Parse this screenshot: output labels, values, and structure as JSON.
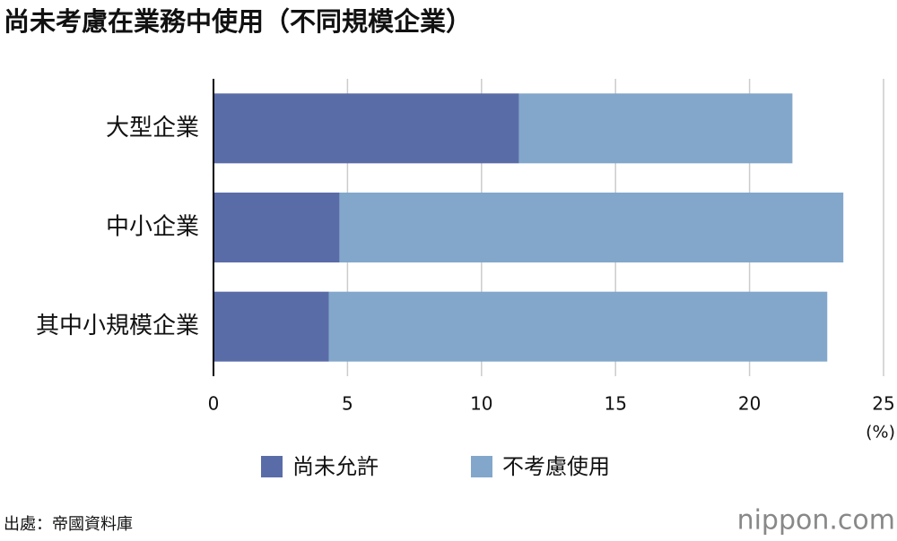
{
  "chart_data": {
    "type": "stacked-bar-horizontal",
    "title": "尚未考慮在業務中使用（不同規模企業）",
    "categories": [
      "大型企業",
      "中小企業",
      "其中小規模企業"
    ],
    "series": [
      {
        "name": "尚未允許",
        "color": "#5a6ca8",
        "values": [
          11.4,
          4.7,
          4.3
        ]
      },
      {
        "name": "不考慮使用",
        "color": "#82a7cb",
        "values": [
          10.2,
          18.8,
          18.6
        ]
      }
    ],
    "xlim": [
      0,
      25
    ],
    "xticks": [
      0,
      5,
      10,
      15,
      20,
      25
    ],
    "x_unit": "(%)",
    "grid": true,
    "legend": "bottom",
    "source": "出處：帝國資料庫",
    "logo": "nippon.com"
  }
}
